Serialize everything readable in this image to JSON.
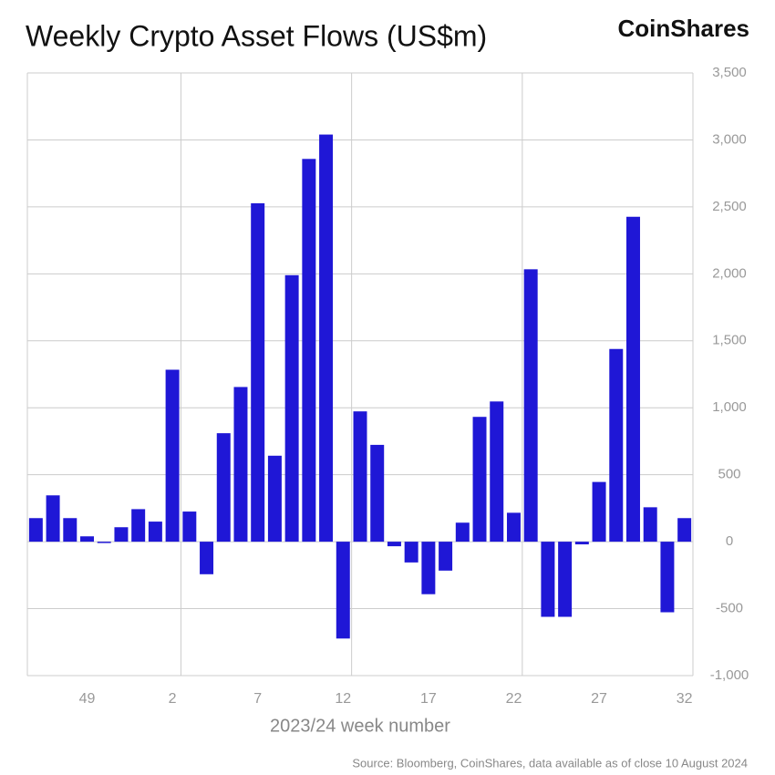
{
  "chart_data": {
    "type": "bar",
    "title": "Weekly Crypto Asset Flows (US$m)",
    "brand": "CoinShares",
    "x_label": "2023/24 week number",
    "source": "Source: Bloomberg, CoinShares, data available as of close 10 August 2024",
    "categories": [
      null,
      null,
      null,
      "49",
      null,
      null,
      null,
      null,
      "2",
      null,
      null,
      null,
      null,
      "7",
      null,
      null,
      null,
      null,
      "12",
      null,
      null,
      null,
      null,
      "17",
      null,
      null,
      null,
      null,
      "22",
      null,
      null,
      null,
      null,
      "27",
      null,
      null,
      null,
      null,
      "32"
    ],
    "values": [
      176,
      346,
      176,
      40,
      -10,
      108,
      243,
      150,
      1284,
      225,
      -243,
      810,
      1155,
      2527,
      642,
      1990,
      2858,
      3040,
      -723,
      973,
      723,
      -34,
      -155,
      -392,
      -216,
      142,
      932,
      1047,
      216,
      2034,
      -561,
      -561,
      -20,
      446,
      1439,
      2426,
      257,
      -527,
      176
    ],
    "color": "#1f17d6",
    "ylim": [
      -1000,
      3500
    ],
    "yticks": [
      {
        "value": -1000,
        "label": "-1,000"
      },
      {
        "value": -500,
        "label": "-500"
      },
      0,
      500,
      {
        "value": 1000,
        "label": "1,000"
      },
      {
        "value": 1500,
        "label": "1,500"
      },
      {
        "value": 2000,
        "label": "2,000"
      },
      {
        "value": 2500,
        "label": "2,500"
      },
      {
        "value": 3000,
        "label": "3,000"
      },
      {
        "value": 3500,
        "label": "3,500"
      }
    ],
    "grid": true
  }
}
